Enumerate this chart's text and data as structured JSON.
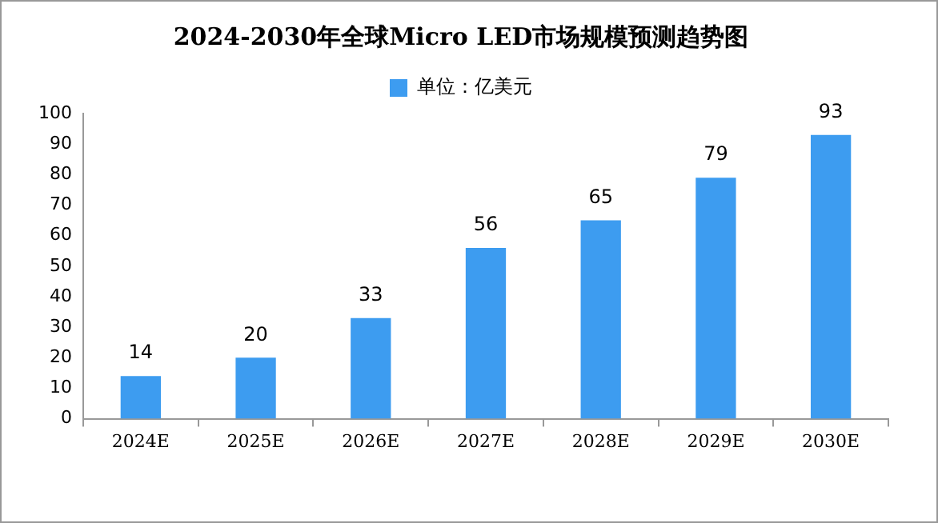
{
  "chart_data": {
    "type": "bar",
    "title": "2024-2030年全球Micro LED市场规模预测趋势图",
    "categories": [
      "2024E",
      "2025E",
      "2026E",
      "2027E",
      "2028E",
      "2029E",
      "2030E"
    ],
    "series": [
      {
        "name": "单位：亿美元",
        "color": "#3d9cf0",
        "values": [
          14,
          20,
          33,
          56,
          65,
          79,
          93
        ]
      }
    ],
    "ylim": [
      0,
      100
    ],
    "yticks": [
      0,
      10,
      20,
      30,
      40,
      50,
      60,
      70,
      80,
      90,
      100
    ],
    "grid": false,
    "legend": "top",
    "data_labels": true
  }
}
